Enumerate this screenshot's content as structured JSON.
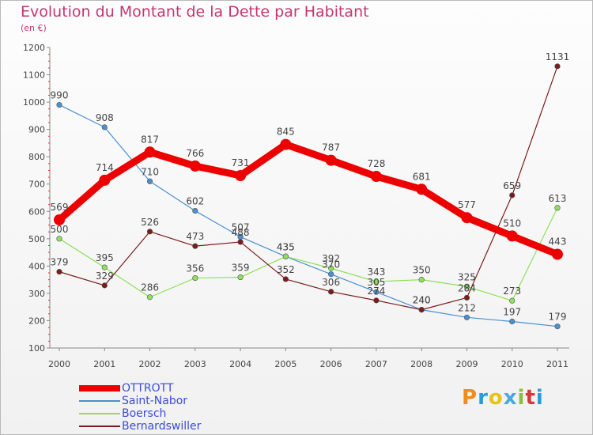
{
  "header": {
    "title": "Evolution du Montant de la Dette par Habitant",
    "subtitle": "(en €)"
  },
  "logo": {
    "letters": [
      "P",
      "r",
      "o",
      "x",
      "i",
      "t",
      "i"
    ],
    "colors": [
      "#f08c1e",
      "#2a9ad8",
      "#e8c11a",
      "#49a8e0",
      "#8cbd3c",
      "#d8373b",
      "#2a9ad8"
    ]
  },
  "chart_data": {
    "type": "line",
    "title": "Evolution du Montant de la Dette par Habitant",
    "subtitle": "(en €)",
    "xlabel": "",
    "ylabel": "",
    "categories": [
      "2000",
      "2001",
      "2002",
      "2003",
      "2004",
      "2005",
      "2006",
      "2007",
      "2008",
      "2009",
      "2010",
      "2011"
    ],
    "ylim": [
      100,
      1200
    ],
    "yticks": [
      100,
      200,
      300,
      400,
      500,
      600,
      700,
      800,
      900,
      1000,
      1100,
      1200
    ],
    "grid": false,
    "legend_position": "bottom-left",
    "series": [
      {
        "name": "OTTROTT",
        "color": "#ec0000",
        "emphasis": true,
        "values": [
          569,
          714,
          817,
          766,
          731,
          845,
          787,
          728,
          681,
          577,
          510,
          443
        ]
      },
      {
        "name": "Saint-Nabor",
        "color": "#4a8fd0",
        "emphasis": false,
        "values": [
          990,
          908,
          710,
          602,
          507,
          435,
          370,
          305,
          240,
          212,
          197,
          179
        ]
      },
      {
        "name": "Boersch",
        "color": "#8fe05a",
        "emphasis": false,
        "values": [
          500,
          395,
          286,
          356,
          359,
          435,
          392,
          343,
          350,
          325,
          273,
          613
        ]
      },
      {
        "name": "Bernardswiller",
        "color": "#7a1c1c",
        "emphasis": false,
        "values": [
          379,
          329,
          526,
          473,
          488,
          352,
          306,
          274,
          240,
          284,
          659,
          1131
        ]
      }
    ]
  }
}
